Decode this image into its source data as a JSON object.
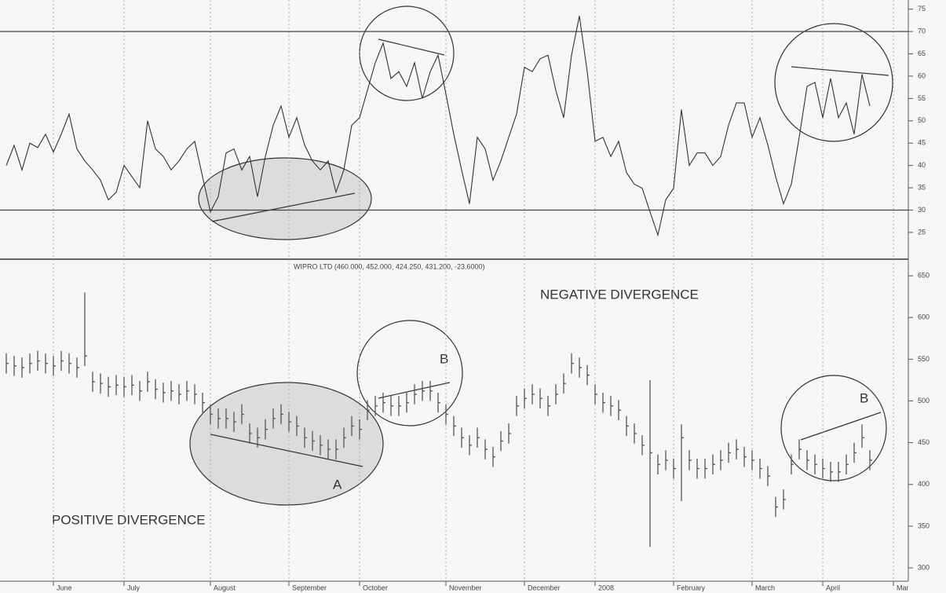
{
  "chart_data": [
    {
      "type": "line",
      "color": "#333333",
      "values": [
        40,
        44.5,
        39,
        45,
        44,
        47,
        43,
        47,
        51.5,
        43.7,
        41,
        39,
        36.7,
        32.3,
        34,
        40,
        37.5,
        35,
        50,
        43.7,
        42,
        39,
        41,
        43.7,
        45.4,
        37.5,
        29.6,
        33,
        42.8,
        43.7,
        39,
        42,
        33,
        42,
        49,
        53.3,
        46.3,
        50.7,
        44.6,
        41,
        39,
        41,
        34,
        39,
        49,
        50.7,
        56.8,
        63,
        67.4,
        59.5,
        61,
        57.7,
        63,
        55,
        61,
        64.7,
        56,
        47,
        39,
        31.4,
        46.3,
        43.7,
        36.7,
        41,
        46.3,
        51.5,
        62,
        61,
        63.9,
        64.7,
        56.8,
        50.7,
        64.7,
        73.5,
        61,
        45.4,
        46.3,
        42,
        45.4,
        38.4,
        35.8,
        34.9,
        29.6,
        24.4,
        32.3,
        34.9,
        52.5,
        40,
        42.8,
        42.8,
        40,
        42,
        49,
        54,
        54,
        46.3,
        50.7,
        44.6,
        37.5,
        31.4,
        35.8,
        46.3,
        57.7,
        58.6,
        50.7,
        59.5,
        50.7,
        54,
        47,
        60.4,
        53.3,
        null,
        null,
        null,
        null
      ],
      "ylim": [
        19,
        75.3
      ],
      "yticks": [
        25,
        30,
        35,
        40,
        45,
        50,
        55,
        60,
        65,
        70,
        75
      ],
      "hlines": [
        30,
        70
      ]
    },
    {
      "type": "hlc",
      "color": "#555555",
      "title": "WIPRO LTD (460.000, 452.000, 424.250, 431.200, -23.6000)",
      "annotations": [
        "NEGATIVE DIVERGENCE",
        "POSITIVE DIVERGENCE",
        "A",
        "B",
        "B"
      ],
      "categories": [
        null,
        null,
        null,
        null,
        null,
        null,
        "June",
        null,
        null,
        null,
        null,
        null,
        null,
        null,
        null,
        "July",
        null,
        null,
        null,
        null,
        null,
        null,
        null,
        null,
        null,
        null,
        "August",
        null,
        null,
        null,
        null,
        null,
        null,
        null,
        null,
        null,
        "September",
        null,
        null,
        null,
        null,
        null,
        null,
        null,
        null,
        "October",
        null,
        null,
        null,
        null,
        null,
        null,
        null,
        null,
        null,
        null,
        "November",
        null,
        null,
        null,
        null,
        null,
        null,
        null,
        null,
        null,
        "December",
        null,
        null,
        null,
        null,
        null,
        null,
        null,
        null,
        "2008",
        null,
        null,
        null,
        null,
        null,
        null,
        null,
        null,
        null,
        "February",
        null,
        null,
        null,
        null,
        null,
        null,
        null,
        null,
        null,
        "March",
        null,
        null,
        null,
        null,
        null,
        null,
        null,
        null,
        "April",
        null,
        null,
        null,
        null,
        null,
        null,
        null,
        null,
        "Mar",
        null
      ],
      "values": [
        545,
        542,
        540,
        545,
        548,
        545,
        542,
        548,
        545,
        540,
        554,
        523,
        521,
        517,
        519,
        517,
        519,
        512,
        523,
        514,
        510,
        512,
        508,
        512,
        508,
        498,
        484,
        479,
        479,
        475,
        484,
        461,
        456,
        466,
        479,
        484,
        475,
        470,
        456,
        452,
        447,
        442,
        442,
        456,
        470,
        466,
        489,
        494,
        498,
        494,
        494,
        498,
        508,
        512,
        512,
        498,
        484,
        470,
        456,
        447,
        456,
        442,
        433,
        452,
        461,
        494,
        503,
        508,
        503,
        494,
        508,
        521,
        545,
        540,
        531,
        508,
        498,
        494,
        489,
        470,
        461,
        447,
        438,
        424,
        429,
        419,
        456,
        429,
        419,
        419,
        424,
        429,
        438,
        442,
        433,
        429,
        419,
        410,
        373,
        382,
        424,
        442,
        429,
        424,
        419,
        415,
        415,
        424,
        438,
        456,
        429,
        null,
        null,
        null,
        null
      ],
      "high": [
        557,
        554,
        552,
        557,
        560,
        557,
        554,
        560,
        557,
        552,
        630,
        535,
        533,
        529,
        531,
        529,
        531,
        524,
        535,
        526,
        522,
        524,
        520,
        524,
        520,
        510,
        496,
        491,
        491,
        487,
        496,
        473,
        468,
        478,
        491,
        496,
        487,
        482,
        468,
        464,
        459,
        454,
        454,
        468,
        482,
        478,
        501,
        506,
        510,
        506,
        506,
        510,
        520,
        524,
        524,
        510,
        496,
        482,
        468,
        459,
        468,
        454,
        445,
        464,
        473,
        506,
        515,
        520,
        515,
        506,
        520,
        533,
        557,
        552,
        543,
        520,
        510,
        506,
        501,
        482,
        473,
        459,
        525,
        436,
        441,
        431,
        472,
        441,
        431,
        431,
        436,
        441,
        450,
        454,
        445,
        441,
        431,
        422,
        385,
        394,
        436,
        454,
        441,
        436,
        431,
        427,
        427,
        436,
        450,
        472,
        441,
        null,
        null,
        null,
        null
      ],
      "low": [
        533,
        530,
        528,
        533,
        536,
        533,
        530,
        536,
        533,
        528,
        542,
        511,
        509,
        505,
        507,
        505,
        507,
        500,
        511,
        502,
        498,
        500,
        496,
        500,
        496,
        486,
        472,
        467,
        467,
        463,
        472,
        449,
        444,
        454,
        467,
        472,
        463,
        458,
        444,
        440,
        435,
        430,
        430,
        444,
        458,
        454,
        477,
        482,
        486,
        482,
        482,
        486,
        496,
        500,
        500,
        486,
        472,
        458,
        444,
        435,
        444,
        430,
        421,
        440,
        449,
        482,
        491,
        496,
        491,
        482,
        496,
        509,
        533,
        528,
        519,
        496,
        486,
        482,
        477,
        458,
        449,
        435,
        325,
        412,
        417,
        407,
        380,
        417,
        407,
        407,
        412,
        417,
        426,
        430,
        421,
        417,
        407,
        398,
        361,
        370,
        412,
        430,
        417,
        412,
        407,
        403,
        403,
        412,
        426,
        444,
        417,
        null,
        null,
        null,
        null
      ],
      "ylim": [
        284,
        668
      ],
      "yticks": [
        300,
        350,
        400,
        450,
        500,
        550,
        600,
        650
      ]
    }
  ]
}
